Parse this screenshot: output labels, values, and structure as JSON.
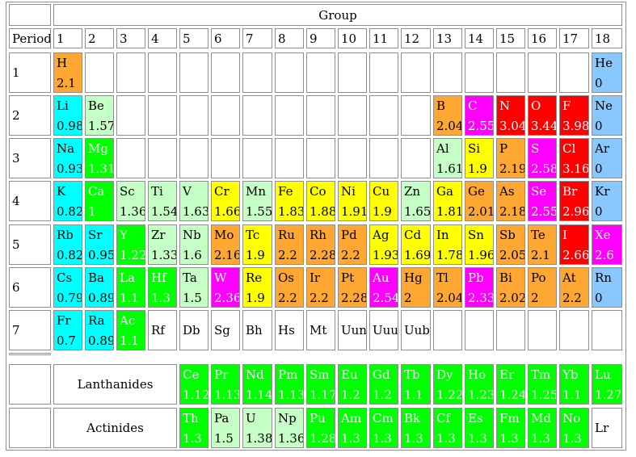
{
  "group_title": "Group",
  "period_title": "Period",
  "groups": [
    "1",
    "2",
    "3",
    "4",
    "5",
    "6",
    "7",
    "8",
    "9",
    "10",
    "11",
    "12",
    "13",
    "14",
    "15",
    "16",
    "17",
    "18"
  ],
  "periods": [
    "1",
    "2",
    "3",
    "4",
    "5",
    "6",
    "7"
  ],
  "colors": {
    "orange": "#ffa733",
    "cyan": "#00ffff",
    "lightgreen": "#c6ffc6",
    "green": "#00ff00",
    "yellow": "#ffff00",
    "magenta": "#ff00ff",
    "red": "#ff0000",
    "blue": "#88c8ff",
    "none": "#ffffff"
  },
  "rows": [
    [
      [
        "H",
        "2.1",
        "orange"
      ],
      null,
      null,
      null,
      null,
      null,
      null,
      null,
      null,
      null,
      null,
      null,
      null,
      null,
      null,
      null,
      null,
      [
        "He",
        "0",
        "blue"
      ]
    ],
    [
      [
        "Li",
        "0.98",
        "cyan"
      ],
      [
        "Be",
        "1.57",
        "lightgreen"
      ],
      null,
      null,
      null,
      null,
      null,
      null,
      null,
      null,
      null,
      null,
      [
        "B",
        "2.04",
        "orange"
      ],
      [
        "C",
        "2.55",
        "magenta"
      ],
      [
        "N",
        "3.04",
        "red"
      ],
      [
        "O",
        "3.44",
        "red"
      ],
      [
        "F",
        "3.98",
        "red"
      ],
      [
        "Ne",
        "0",
        "blue"
      ]
    ],
    [
      [
        "Na",
        "0.93",
        "cyan"
      ],
      [
        "Mg",
        "1.31",
        "green"
      ],
      null,
      null,
      null,
      null,
      null,
      null,
      null,
      null,
      null,
      null,
      [
        "Al",
        "1.61",
        "lightgreen"
      ],
      [
        "Si",
        "1.9",
        "yellow"
      ],
      [
        "P",
        "2.19",
        "orange"
      ],
      [
        "S",
        "2.58",
        "magenta"
      ],
      [
        "Cl",
        "3.16",
        "red"
      ],
      [
        "Ar",
        "0",
        "blue"
      ]
    ],
    [
      [
        "K",
        "0.82",
        "cyan"
      ],
      [
        "Ca",
        "1",
        "green"
      ],
      [
        "Sc",
        "1.36",
        "lightgreen"
      ],
      [
        "Ti",
        "1.54",
        "lightgreen"
      ],
      [
        "V",
        "1.63",
        "lightgreen"
      ],
      [
        "Cr",
        "1.66",
        "yellow"
      ],
      [
        "Mn",
        "1.55",
        "lightgreen"
      ],
      [
        "Fe",
        "1.83",
        "yellow"
      ],
      [
        "Co",
        "1.88",
        "yellow"
      ],
      [
        "Ni",
        "1.91",
        "yellow"
      ],
      [
        "Cu",
        "1.9",
        "yellow"
      ],
      [
        "Zn",
        "1.65",
        "lightgreen"
      ],
      [
        "Ga",
        "1.81",
        "yellow"
      ],
      [
        "Ge",
        "2.01",
        "orange"
      ],
      [
        "As",
        "2.18",
        "orange"
      ],
      [
        "Se",
        "2.55",
        "magenta"
      ],
      [
        "Br",
        "2.96",
        "red"
      ],
      [
        "Kr",
        "0",
        "blue"
      ]
    ],
    [
      [
        "Rb",
        "0.82",
        "cyan"
      ],
      [
        "Sr",
        "0.95",
        "cyan"
      ],
      [
        "Y",
        "1.22",
        "green"
      ],
      [
        "Zr",
        "1.33",
        "lightgreen"
      ],
      [
        "Nb",
        "1.6",
        "lightgreen"
      ],
      [
        "Mo",
        "2.16",
        "orange"
      ],
      [
        "Tc",
        "1.9",
        "yellow"
      ],
      [
        "Ru",
        "2.2",
        "orange"
      ],
      [
        "Rh",
        "2.28",
        "orange"
      ],
      [
        "Pd",
        "2.2",
        "orange"
      ],
      [
        "Ag",
        "1.93",
        "yellow"
      ],
      [
        "Cd",
        "1.69",
        "yellow"
      ],
      [
        "In",
        "1.78",
        "yellow"
      ],
      [
        "Sn",
        "1.96",
        "yellow"
      ],
      [
        "Sb",
        "2.05",
        "orange"
      ],
      [
        "Te",
        "2.1",
        "orange"
      ],
      [
        "I",
        "2.66",
        "red"
      ],
      [
        "Xe",
        "2.6",
        "magenta"
      ]
    ],
    [
      [
        "Cs",
        "0.79",
        "cyan"
      ],
      [
        "Ba",
        "0.89",
        "cyan"
      ],
      [
        "La",
        "1.1",
        "green"
      ],
      [
        "Hf",
        "1.3",
        "green"
      ],
      [
        "Ta",
        "1.5",
        "lightgreen"
      ],
      [
        "W",
        "2.36",
        "magenta"
      ],
      [
        "Re",
        "1.9",
        "yellow"
      ],
      [
        "Os",
        "2.2",
        "orange"
      ],
      [
        "Ir",
        "2.2",
        "orange"
      ],
      [
        "Pt",
        "2.28",
        "orange"
      ],
      [
        "Au",
        "2.54",
        "magenta"
      ],
      [
        "Hg",
        "2",
        "orange"
      ],
      [
        "Tl",
        "2.04",
        "orange"
      ],
      [
        "Pb",
        "2.33",
        "magenta"
      ],
      [
        "Bi",
        "2.02",
        "orange"
      ],
      [
        "Po",
        "2",
        "orange"
      ],
      [
        "At",
        "2.2",
        "orange"
      ],
      [
        "Rn",
        "0",
        "blue"
      ]
    ],
    [
      [
        "Fr",
        "0.7",
        "cyan"
      ],
      [
        "Ra",
        "0.89",
        "cyan"
      ],
      [
        "Ac",
        "1.1",
        "green"
      ],
      [
        "Rf",
        "",
        "none"
      ],
      [
        "Db",
        "",
        "none"
      ],
      [
        "Sg",
        "",
        "none"
      ],
      [
        "Bh",
        "",
        "none"
      ],
      [
        "Hs",
        "",
        "none"
      ],
      [
        "Mt",
        "",
        "none"
      ],
      [
        "Uun",
        "",
        "none"
      ],
      [
        "Uuu",
        "",
        "none"
      ],
      [
        "Uub",
        "",
        "none"
      ],
      null,
      null,
      null,
      null,
      null,
      null
    ]
  ],
  "series": [
    {
      "name": "Lanthanides",
      "elements": [
        [
          "Ce",
          "1.12",
          "green"
        ],
        [
          "Pr",
          "1.13",
          "green"
        ],
        [
          "Nd",
          "1.14",
          "green"
        ],
        [
          "Pm",
          "1.13",
          "green"
        ],
        [
          "Sm",
          "1.17",
          "green"
        ],
        [
          "Eu",
          "1.2",
          "green"
        ],
        [
          "Gd",
          "1.2",
          "green"
        ],
        [
          "Tb",
          "1.1",
          "green"
        ],
        [
          "Dy",
          "1.22",
          "green"
        ],
        [
          "Ho",
          "1.23",
          "green"
        ],
        [
          "Er",
          "1.24",
          "green"
        ],
        [
          "Tm",
          "1.25",
          "green"
        ],
        [
          "Yb",
          "1.1",
          "green"
        ],
        [
          "Lu",
          "1.27",
          "green"
        ]
      ]
    },
    {
      "name": "Actinides",
      "elements": [
        [
          "Th",
          "1.3",
          "green"
        ],
        [
          "Pa",
          "1.5",
          "lightgreen"
        ],
        [
          "U",
          "1.38",
          "lightgreen"
        ],
        [
          "Np",
          "1.36",
          "lightgreen"
        ],
        [
          "Pu",
          "1.28",
          "green"
        ],
        [
          "Am",
          "1.3",
          "green"
        ],
        [
          "Cm",
          "1.3",
          "green"
        ],
        [
          "Bk",
          "1.3",
          "green"
        ],
        [
          "Cf",
          "1.3",
          "green"
        ],
        [
          "Es",
          "1.3",
          "green"
        ],
        [
          "Fm",
          "1.3",
          "green"
        ],
        [
          "Md",
          "1.3",
          "green"
        ],
        [
          "No",
          "1.3",
          "green"
        ],
        [
          "Lr",
          "",
          "none"
        ]
      ]
    }
  ]
}
